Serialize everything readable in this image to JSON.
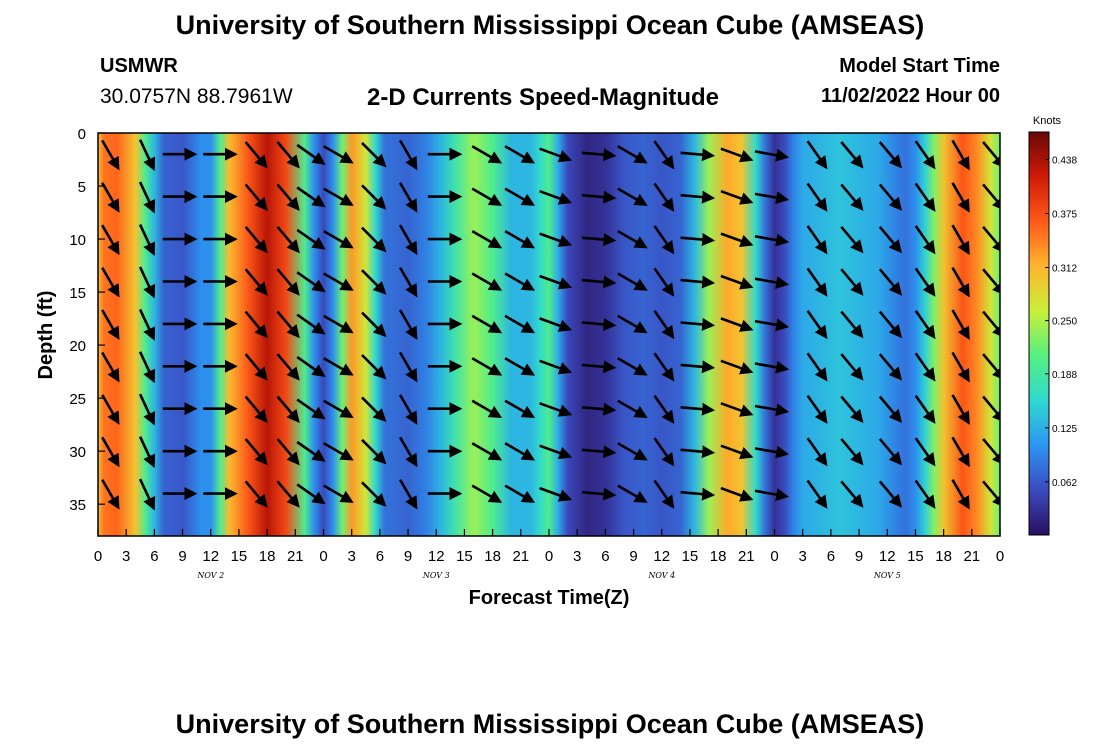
{
  "header": {
    "title": "University of Southern Mississippi Ocean Cube (AMSEAS)",
    "station": "USMWR",
    "coords": "30.0757N  88.7961W",
    "plot_title": "2-D Currents Speed-Magnitude",
    "model_start_label": "Model Start Time",
    "model_start_date": "11/02/2022 Hour 00"
  },
  "footer": {
    "title": "University of Southern Mississippi Ocean Cube (AMSEAS)"
  },
  "chart_data": {
    "type": "heatmap",
    "title": "2-D Currents Speed-Magnitude",
    "xlabel": "Forecast Time(Z)",
    "ylabel": "Depth (ft)",
    "x_ticks": [
      "0",
      "3",
      "6",
      "9",
      "12",
      "15",
      "18",
      "21",
      "0",
      "3",
      "6",
      "9",
      "12",
      "15",
      "18",
      "21",
      "0",
      "3",
      "6",
      "9",
      "12",
      "15",
      "18",
      "21",
      "0",
      "3",
      "6",
      "9",
      "12",
      "15",
      "18",
      "21",
      "0"
    ],
    "x_day_labels": [
      {
        "label": "NOV 2",
        "hour": 12
      },
      {
        "label": "NOV 3",
        "hour": 36
      },
      {
        "label": "NOV 4",
        "hour": 60
      },
      {
        "label": "NOV 5",
        "hour": 84
      }
    ],
    "x_range_hours": [
      0,
      96
    ],
    "y_ticks": [
      0,
      5,
      10,
      15,
      20,
      25,
      30,
      35
    ],
    "y_range_ft": [
      0,
      38
    ],
    "colorbar": {
      "unit": "Knots",
      "range": [
        0,
        0.47
      ],
      "tick_values": [
        0.438,
        0.375,
        0.312,
        0.25,
        0.188,
        0.125,
        0.062
      ],
      "tick_labels": [
        "0.438",
        "0.375",
        "0.312",
        "0.250",
        "0.188",
        "0.125",
        "0.062"
      ],
      "colors": [
        "#2a0f5e",
        "#3b4bbf",
        "#2c95f2",
        "#2fd9d0",
        "#55f080",
        "#c8f03a",
        "#ffb52e",
        "#ff5a1a",
        "#cf1a07",
        "#6b0707"
      ]
    },
    "speed_profile": [
      {
        "hour": 0,
        "speed": 0.3
      },
      {
        "hour": 0.6,
        "speed": 0.35
      },
      {
        "hour": 2,
        "speed": 0.36
      },
      {
        "hour": 4,
        "speed": 0.3
      },
      {
        "hour": 5,
        "speed": 0.2
      },
      {
        "hour": 6,
        "speed": 0.13
      },
      {
        "hour": 7,
        "speed": 0.07
      },
      {
        "hour": 9,
        "speed": 0.06
      },
      {
        "hour": 10,
        "speed": 0.08
      },
      {
        "hour": 11,
        "speed": 0.1
      },
      {
        "hour": 12,
        "speed": 0.1
      },
      {
        "hour": 13,
        "speed": 0.2
      },
      {
        "hour": 14,
        "speed": 0.31
      },
      {
        "hour": 16,
        "speed": 0.37
      },
      {
        "hour": 18,
        "speed": 0.43
      },
      {
        "hour": 20,
        "speed": 0.38
      },
      {
        "hour": 22,
        "speed": 0.2
      },
      {
        "hour": 23,
        "speed": 0.1
      },
      {
        "hour": 24,
        "speed": 0.05
      },
      {
        "hour": 25,
        "speed": 0.1
      },
      {
        "hour": 26,
        "speed": 0.22
      },
      {
        "hour": 27,
        "speed": 0.33
      },
      {
        "hour": 28.5,
        "speed": 0.27
      },
      {
        "hour": 29.5,
        "speed": 0.16
      },
      {
        "hour": 30.5,
        "speed": 0.08
      },
      {
        "hour": 33,
        "speed": 0.07
      },
      {
        "hour": 35,
        "speed": 0.09
      },
      {
        "hour": 36.5,
        "speed": 0.13
      },
      {
        "hour": 38,
        "speed": 0.18
      },
      {
        "hour": 40,
        "speed": 0.24
      },
      {
        "hour": 42,
        "speed": 0.2
      },
      {
        "hour": 44,
        "speed": 0.13
      },
      {
        "hour": 46,
        "speed": 0.13
      },
      {
        "hour": 47,
        "speed": 0.16
      },
      {
        "hour": 48,
        "speed": 0.2
      },
      {
        "hour": 49,
        "speed": 0.12
      },
      {
        "hour": 50,
        "speed": 0.05
      },
      {
        "hour": 52,
        "speed": 0.02
      },
      {
        "hour": 54,
        "speed": 0.03
      },
      {
        "hour": 56,
        "speed": 0.06
      },
      {
        "hour": 58,
        "speed": 0.07
      },
      {
        "hour": 60,
        "speed": 0.06
      },
      {
        "hour": 62,
        "speed": 0.07
      },
      {
        "hour": 63.5,
        "speed": 0.13
      },
      {
        "hour": 65,
        "speed": 0.24
      },
      {
        "hour": 67,
        "speed": 0.32
      },
      {
        "hour": 68.5,
        "speed": 0.3
      },
      {
        "hour": 70,
        "speed": 0.16
      },
      {
        "hour": 71,
        "speed": 0.08
      },
      {
        "hour": 72,
        "speed": 0.03
      },
      {
        "hour": 73,
        "speed": 0.05
      },
      {
        "hour": 74,
        "speed": 0.09
      },
      {
        "hour": 75,
        "speed": 0.12
      },
      {
        "hour": 77,
        "speed": 0.13
      },
      {
        "hour": 79,
        "speed": 0.14
      },
      {
        "hour": 81,
        "speed": 0.13
      },
      {
        "hour": 83,
        "speed": 0.12
      },
      {
        "hour": 85,
        "speed": 0.09
      },
      {
        "hour": 86,
        "speed": 0.08
      },
      {
        "hour": 87,
        "speed": 0.1
      },
      {
        "hour": 88,
        "speed": 0.15
      },
      {
        "hour": 89,
        "speed": 0.23
      },
      {
        "hour": 90,
        "speed": 0.3
      },
      {
        "hour": 92,
        "speed": 0.37
      },
      {
        "hour": 93.5,
        "speed": 0.34
      },
      {
        "hour": 95,
        "speed": 0.27
      },
      {
        "hour": 96,
        "speed": 0.22
      }
    ],
    "vector_columns": [
      {
        "hour": 1.3,
        "dir": 150
      },
      {
        "hour": 5.2,
        "dir": 155
      },
      {
        "hour": 8.6,
        "dir": 90
      },
      {
        "hour": 12.9,
        "dir": 90
      },
      {
        "hour": 16.8,
        "dir": 140
      },
      {
        "hour": 20.2,
        "dir": 140
      },
      {
        "hour": 22.6,
        "dir": 125
      },
      {
        "hour": 25.5,
        "dir": 120
      },
      {
        "hour": 29.3,
        "dir": 135
      },
      {
        "hour": 33,
        "dir": 150
      },
      {
        "hour": 36.8,
        "dir": 90
      },
      {
        "hour": 41.3,
        "dir": 120
      },
      {
        "hour": 44.8,
        "dir": 120
      },
      {
        "hour": 48.6,
        "dir": 110
      },
      {
        "hour": 53.2,
        "dir": 95
      },
      {
        "hour": 56.8,
        "dir": 120
      },
      {
        "hour": 60.2,
        "dir": 145
      },
      {
        "hour": 63.7,
        "dir": 95
      },
      {
        "hour": 67.9,
        "dir": 110
      },
      {
        "hour": 71.6,
        "dir": 100
      },
      {
        "hour": 76.5,
        "dir": 145
      },
      {
        "hour": 80.2,
        "dir": 140
      },
      {
        "hour": 84.3,
        "dir": 140
      },
      {
        "hour": 88,
        "dir": 145
      },
      {
        "hour": 91.8,
        "dir": 150
      },
      {
        "hour": 95.3,
        "dir": 140
      }
    ],
    "vector_depths_ft": [
      2,
      6,
      10,
      14,
      18,
      22,
      26,
      30,
      34
    ]
  }
}
